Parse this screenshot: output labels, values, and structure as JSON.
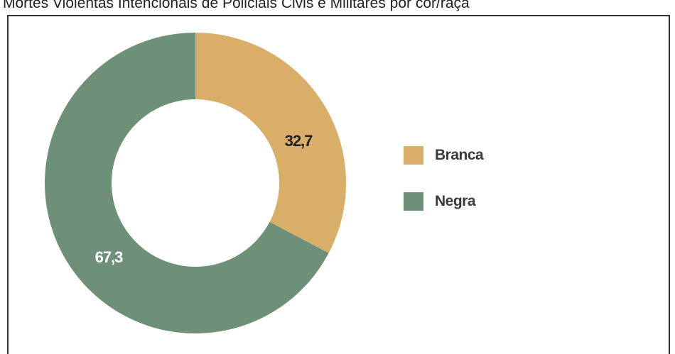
{
  "title": "Mortes Violentas Intencionais de Policiais Civis e Militares por cor/raça",
  "chart_data": {
    "type": "pie",
    "donut": true,
    "categories": [
      "Branca",
      "Negra"
    ],
    "values": [
      32.7,
      67.3
    ],
    "value_labels": [
      "32,7",
      "67,3"
    ],
    "colors": [
      "#d9ae68",
      "#6f9078"
    ],
    "label_colors": [
      "#222222",
      "#ffffff"
    ],
    "legend": {
      "placement": "right",
      "entries": [
        "Branca",
        "Negra"
      ]
    }
  }
}
